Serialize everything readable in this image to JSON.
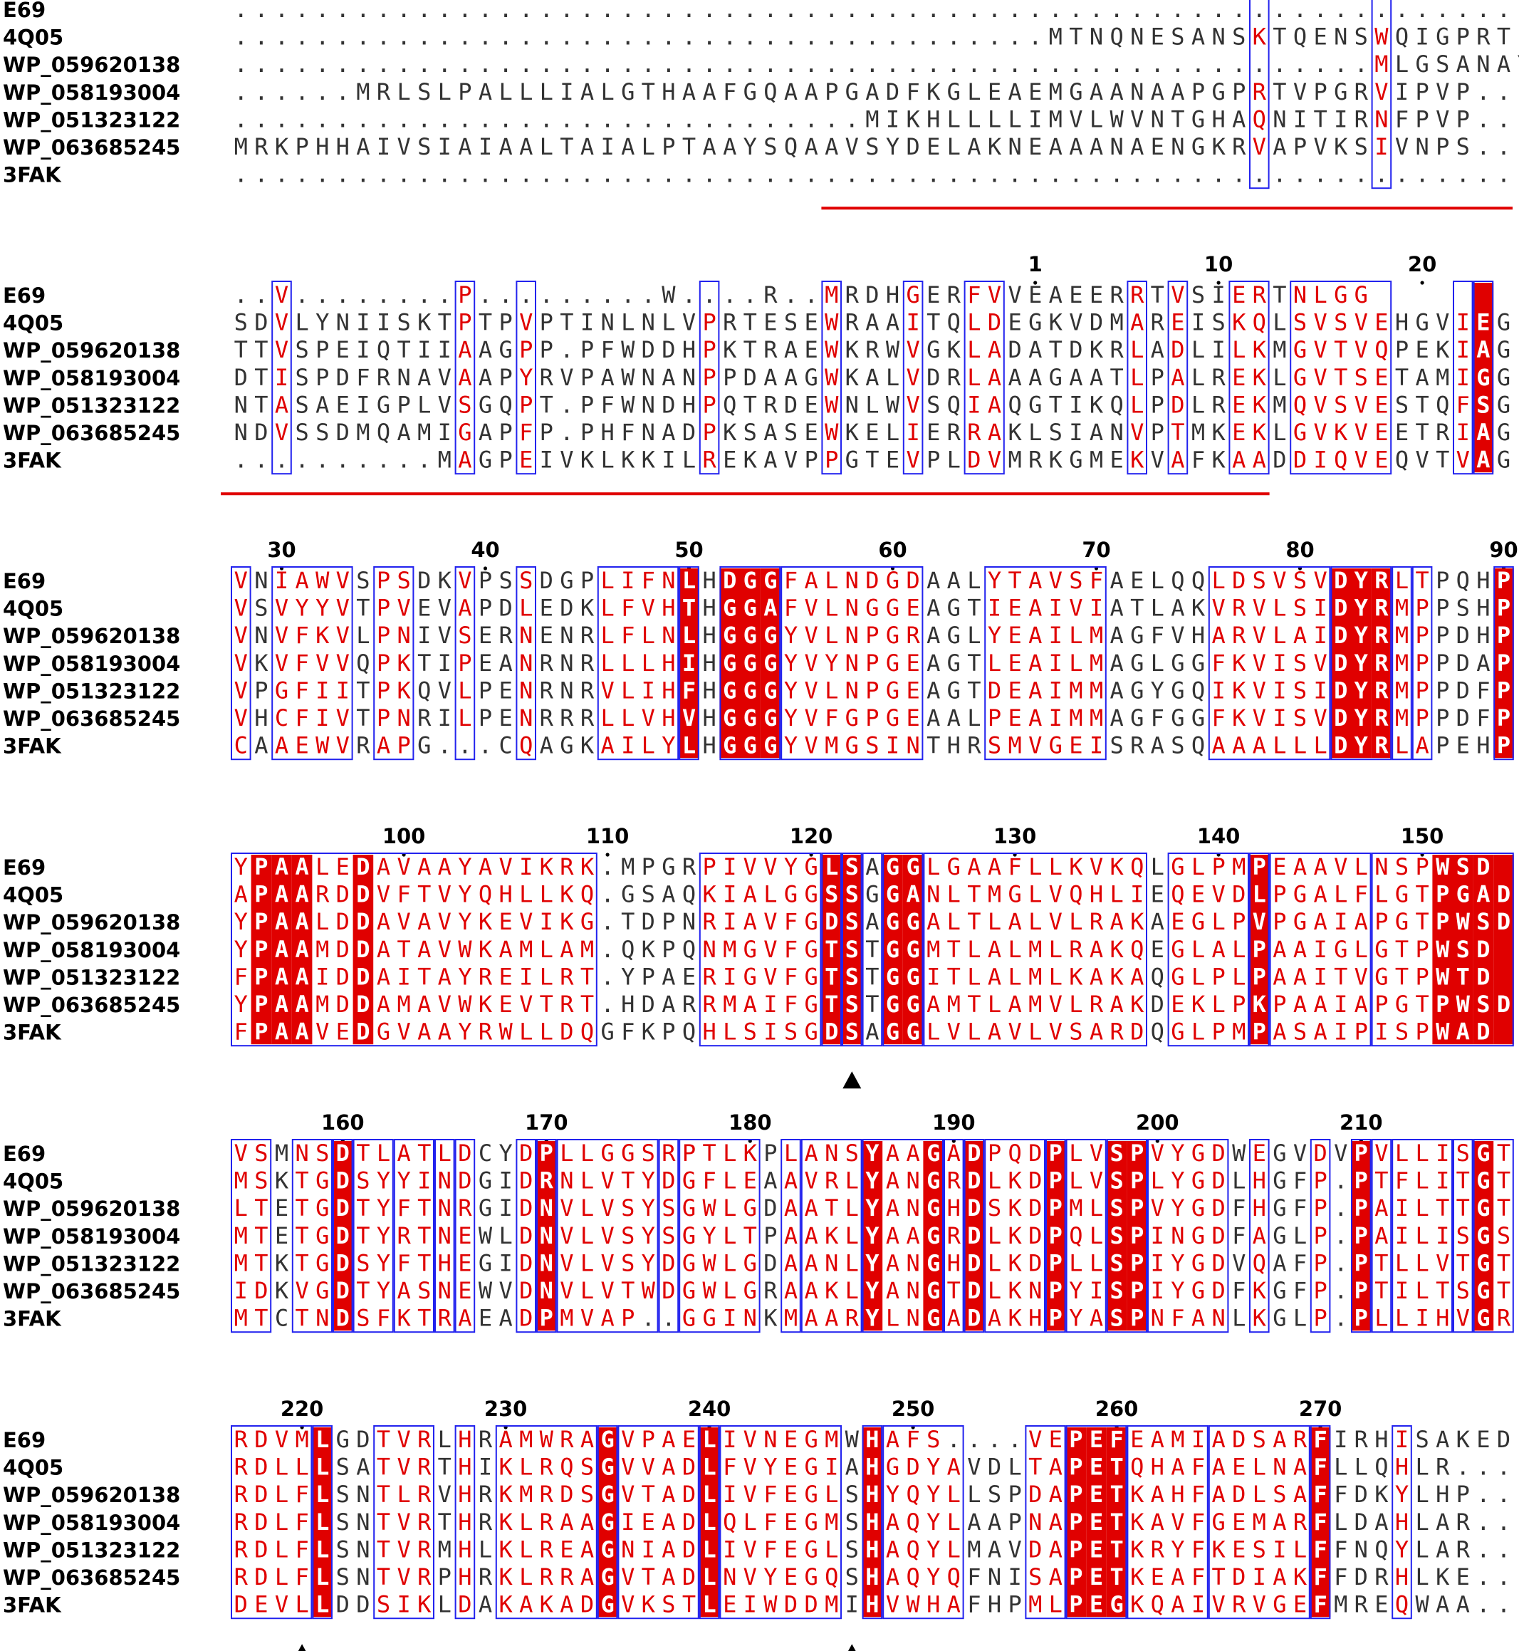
{
  "names": [
    "E69",
    "4Q05",
    "WP_059620138",
    "WP_058193004",
    "WP_051323122",
    "WP_063685245",
    "3FAK"
  ],
  "colors": {
    "conserved_fill": "#e00000",
    "similar_text": "#e00000",
    "box_line": "#2222ee",
    "neutral_text": "#333333",
    "underline": "#e00000"
  },
  "blocks": [
    {
      "seqs": [
        "...............................................................",
        "........................................MTNQNESANSKTQENSWQIGPRTLPAPSGA",
        "........................................................MLGSANAYESGLNRANRVIPVP...",
        "......MRLSLPALLLIALGTHAAFGQAAPGADFKGLEAEMGAANAAPGPRTVPGRVIPVP...",
        "...............................MIKHLLLLIMVLWVNTGHAQNITIRNFPVP...",
        "MRKPHHAIVSIAIAALTAIALPTAAYSQAAVSYDELAKNEAAANAENGKRVAPVKSIVNPS..",
        "..............................................................."
      ],
      "numbers": [],
      "boxes": [
        {
          "s": 50,
          "e": 50
        },
        {
          "s": 56,
          "e": 56
        }
      ],
      "solid": [],
      "red": [
        50,
        56
      ],
      "markers": [],
      "underline": {
        "s": 29,
        "e": 65
      }
    },
    {
      "seqs": [
        "..V........P.........W....R..MRDHGERFVVEAEERRTVSIERTNLGG",
        "SDVLYNIISKTPTPVPTINLNLVPRTESEWRAAITQLDEGKVDMAREISKQLSVSVEHGVIEG",
        "TTVSPEIQTIIAAGPP.PFWDDHPKTRAEWKRWVGKLADATDKRLADLILKMGVTVQPEKIAG",
        "DTISPDFRNAVAAPYRVPAWNANPPDAAGWKALVDRLAAAGAATLPALREKLGVTSETAMIGG",
        "NTASAEIGPLVSGQPT.PFWNDHPQTRDEWNLWVSQIAQGTIKQLPDLREKMQVSVESTQFSG",
        "NDVSSDMQAMIGAPFP.PHFNADPKSASEWKELIERRAKLSIANVPTMKEKLGVKVEETRIAG",
        "..........MAGPEIVKLKKILREKAVPPGTEVPLDVMRKGMEKVAFKAADDIQVEQVTVAG"
      ],
      "numbers": [
        {
          "i": 39,
          "n": "1"
        },
        {
          "i": 48,
          "n": "10"
        },
        {
          "i": 58,
          "n": "20"
        }
      ],
      "boxes": [
        {
          "s": 2,
          "e": 2
        },
        {
          "s": 11,
          "e": 11
        },
        {
          "s": 14,
          "e": 14
        },
        {
          "s": 23,
          "e": 23
        },
        {
          "s": 29,
          "e": 29
        },
        {
          "s": 33,
          "e": 33
        },
        {
          "s": 36,
          "e": 37
        },
        {
          "s": 44,
          "e": 44
        },
        {
          "s": 46,
          "e": 46
        },
        {
          "s": 49,
          "e": 50
        },
        {
          "s": 52,
          "e": 56
        },
        {
          "s": 60,
          "e": 60
        },
        {
          "s": 61,
          "e": 61
        }
      ],
      "solid": [
        61
      ],
      "red": [
        2,
        11,
        14,
        23,
        29,
        33,
        36,
        37,
        44,
        46,
        49,
        50,
        52,
        53,
        54,
        55,
        56,
        60,
        61
      ],
      "markers": [],
      "underline": {
        "s": 0,
        "e": 51
      }
    },
    {
      "seqs": [
        "VNIAWVSPSDKVPSSDGPLIFNLHDGGFALNDGDAALYTAVSFAELQQLDSVSVDYRLTPQHP",
        "VSVYYVTPVEVAPDLEDKLFVHTHGGAFVLNGGEAGTIEAIVIATLAKVRVLSIDYRMPPSHP",
        "VNVFKVLPNIVSERNENRLFLNLHGGGYVLNPGRAGLYEAILMAGFVHARVLAIDYRMPPDHP",
        "VKVFVVQPKTIPEANRNRLLLHIHGGGYVYNPGEAGTLEAILMAGLGGFKVISVDYRMPPDAP",
        "VPGFIITPKQVLPENRNRVLIHFHGGGYVLNPGEAGTDEAIMMAGYGQIKVISIDYRMPPDFP",
        "VHCFIVTPNRILPENRRRLLVHVHGGGYVFGPGEAALPEAIMMAGFGGFKVISVDYRMPPDFP",
        "CAAEWVRAPG...CQAGKAILYLHGGGYVMGSINTHRSMVGEISRASQAAALLLDYRLAPEHP"
      ],
      "numbers": [
        {
          "i": 2,
          "n": "30"
        },
        {
          "i": 12,
          "n": "40"
        },
        {
          "i": 22,
          "n": "50"
        },
        {
          "i": 32,
          "n": "60"
        },
        {
          "i": 42,
          "n": "70"
        },
        {
          "i": 52,
          "n": "80"
        },
        {
          "i": 62,
          "n": "90"
        }
      ],
      "boxes": [
        {
          "s": 0,
          "e": 0
        },
        {
          "s": 2,
          "e": 5
        },
        {
          "s": 7,
          "e": 8
        },
        {
          "s": 11,
          "e": 11
        },
        {
          "s": 14,
          "e": 14
        },
        {
          "s": 18,
          "e": 21
        },
        {
          "s": 22,
          "e": 22
        },
        {
          "s": 24,
          "e": 26
        },
        {
          "s": 27,
          "e": 33
        },
        {
          "s": 37,
          "e": 42
        },
        {
          "s": 48,
          "e": 53
        },
        {
          "s": 54,
          "e": 56
        },
        {
          "s": 57,
          "e": 57
        },
        {
          "s": 58,
          "e": 58
        },
        {
          "s": 62,
          "e": 62
        }
      ],
      "solid": [
        22,
        24,
        25,
        26,
        54,
        55,
        56,
        62
      ],
      "red": [
        0,
        2,
        3,
        4,
        5,
        7,
        8,
        11,
        14,
        18,
        19,
        20,
        21,
        22,
        24,
        25,
        26,
        27,
        28,
        29,
        30,
        31,
        32,
        33,
        37,
        38,
        39,
        40,
        41,
        42,
        48,
        49,
        50,
        51,
        52,
        53,
        54,
        55,
        56,
        57,
        58,
        62
      ],
      "markers": [],
      "underline": null
    },
    {
      "seqs": [
        "YPAALEDAVAAYAVIKRK.MPGRPIVVYGLSAGGLGAAFLLKVKQLGLPMPEAAVLNSPWSD",
        "APAARDDVFTVYQHLLKQ.GSAQKIALGGSSGGANLTMGLVQHLIEQEVDLPGALFLGTPGAD",
        "YPAALDDAVAVYKEVIKG.TDPNRIAVFGDSAGGALTLALVLRAKAEGLPVPGAIAPGTPWSD",
        "YPAAMDDATAVWKAMLAM.QKPQNMGVFGTSTGGMTLALMLRAKQEGLALPAAIGLGTPWSD",
        "FPAAIDDAITAYREILRT.YPAERIGVFGTSTGGITLALMLKAKAQGLPLPAAITVGTPWTD",
        "YPAAMDDAMAVWKEVTRT.HDARRMAIFGTSTGGAMTLAMVLRAKDEKLPKPAAIAPGTPWSD",
        "FPAAVEDGVAAYRWLLDQGFKPQHLSISGDSAGGLVLAVLVSARDQGLPMPASAIPISPWAD"
      ],
      "numbers": [
        {
          "i": 8,
          "n": "100"
        },
        {
          "i": 18,
          "n": "110"
        },
        {
          "i": 28,
          "n": "120"
        },
        {
          "i": 38,
          "n": "130"
        },
        {
          "i": 48,
          "n": "140"
        },
        {
          "i": 58,
          "n": "150"
        }
      ],
      "boxes": [
        {
          "s": 0,
          "e": 17
        },
        {
          "s": 23,
          "e": 28
        },
        {
          "s": 29,
          "e": 29
        },
        {
          "s": 30,
          "e": 30
        },
        {
          "s": 31,
          "e": 31
        },
        {
          "s": 32,
          "e": 33
        },
        {
          "s": 34,
          "e": 44
        },
        {
          "s": 46,
          "e": 49
        },
        {
          "s": 50,
          "e": 50
        },
        {
          "s": 51,
          "e": 55
        },
        {
          "s": 56,
          "e": 62
        }
      ],
      "solid": [
        1,
        2,
        3,
        6,
        29,
        30,
        32,
        33,
        50,
        59,
        60,
        61,
        62
      ],
      "red": [
        0,
        1,
        2,
        3,
        4,
        5,
        6,
        7,
        8,
        9,
        10,
        11,
        12,
        13,
        14,
        15,
        16,
        17,
        23,
        24,
        25,
        26,
        27,
        28,
        29,
        30,
        32,
        33,
        34,
        35,
        36,
        37,
        38,
        39,
        40,
        41,
        42,
        43,
        44,
        46,
        47,
        48,
        49,
        50,
        51,
        52,
        53,
        54,
        55,
        56,
        57,
        58,
        59,
        60,
        61,
        62
      ],
      "markers": [
        30
      ],
      "underline": null
    },
    {
      "seqs": [
        "VSMNSDTLATLDCYDPLLGGSRPTLKPLANSYAAGADPQDPLVSPVYGDWEGVDVPVLLISGT",
        "MSKTGDSYYINDGIDRNLVTYDGFLEAAVRLYANGRDLKDPLVSPLYGDLHGFP.PTFLITGT",
        "LTETGDTYFTNRGIDNVLVSYSGWLGDAATLYANGHDSKDPMLSPVYGDFHGFP.PAILTTGT",
        "MTETGDTYRTNEWLDNVLVSYSGYLTPAAKLYAAGRDLKDPQLSPINGDFAGLP.PAILISGS",
        "MTKTGDSYFTHEGIDNVLVSYDGWLGDAANLYANGHDLKDPLLSPIYGDVQAFP.PTLLVTGT",
        "IDKVGDTYASNEWVDNVLVTWDGWLGRAAKLYANGTDLKNPYISPIYGDFKGFP.PTILTSGT",
        "MTCTNDSFKTRAEADPMVAP..GGINKMAARYLNGADAKHPYASPNFANLKGLP.PLLIHVGR"
      ],
      "numbers": [
        {
          "i": 5,
          "n": "160"
        },
        {
          "i": 15,
          "n": "170"
        },
        {
          "i": 25,
          "n": "180"
        },
        {
          "i": 35,
          "n": "190"
        },
        {
          "i": 45,
          "n": "200"
        },
        {
          "i": 55,
          "n": "210"
        }
      ],
      "boxes": [
        {
          "s": 0,
          "e": 1
        },
        {
          "s": 3,
          "e": 4
        },
        {
          "s": 5,
          "e": 5
        },
        {
          "s": 6,
          "e": 7
        },
        {
          "s": 8,
          "e": 9
        },
        {
          "s": 10,
          "e": 10
        },
        {
          "s": 11,
          "e": 11
        },
        {
          "s": 14,
          "e": 14
        },
        {
          "s": 15,
          "e": 15
        },
        {
          "s": 16,
          "e": 20
        },
        {
          "s": 21,
          "e": 21
        },
        {
          "s": 22,
          "e": 25
        },
        {
          "s": 27,
          "e": 27
        },
        {
          "s": 28,
          "e": 30
        },
        {
          "s": 31,
          "e": 34
        },
        {
          "s": 35,
          "e": 35
        },
        {
          "s": 36,
          "e": 36
        },
        {
          "s": 37,
          "e": 39
        },
        {
          "s": 40,
          "e": 40
        },
        {
          "s": 41,
          "e": 42
        },
        {
          "s": 43,
          "e": 44
        },
        {
          "s": 45,
          "e": 48
        },
        {
          "s": 50,
          "e": 50
        },
        {
          "s": 53,
          "e": 53
        },
        {
          "s": 55,
          "e": 55
        },
        {
          "s": 56,
          "e": 56
        },
        {
          "s": 57,
          "e": 59
        },
        {
          "s": 60,
          "e": 60
        },
        {
          "s": 61,
          "e": 62
        }
      ],
      "solid": [
        5,
        15,
        31,
        34,
        36,
        40,
        43,
        44,
        55,
        61
      ],
      "red": [
        0,
        1,
        3,
        4,
        5,
        6,
        7,
        8,
        9,
        10,
        11,
        14,
        15,
        16,
        17,
        18,
        19,
        20,
        21,
        22,
        23,
        24,
        25,
        27,
        28,
        29,
        30,
        31,
        32,
        33,
        34,
        35,
        36,
        37,
        38,
        39,
        40,
        41,
        42,
        43,
        44,
        45,
        46,
        47,
        48,
        50,
        53,
        55,
        56,
        57,
        58,
        59,
        60,
        61,
        62
      ],
      "markers": [],
      "underline": null
    },
    {
      "seqs": [
        "RDVMLGDTVRLHRAMWRAGVPAELIVNEGMWHAFS....VEPEFEAMIADSARFIRHISAKED",
        "RDLLLSATVRTHIKLRQSGVVADLFVYEGIAHGDYAVDLTAPETQHAFAELNAFLLQHLR...",
        "RDLFLSNTLRVHRKMRDSGVTADLIVFEGLSHYQYLLSPDAPETKAHFADLSAFFDKYLHP..",
        "RDLFLSNTVRTHRKLRAAGIEADLQLFEGMSHAQYLAAPNAPETKAVFGEMARFLDAHLAR..",
        "RDLFLSNTVRMHLKLREAGNIADLIVFEGLSHAQYLMAVDAPETKRYFKESILFFNQYLAR..",
        "RDLFLSNTVRPHRKLRRAGVTADLNVYEGQSHAQYQFNISAPETKEAFTDIAKFFDRHLKE..",
        "DEVLLDDSIKLDAKAKADGVKSTLEIWDDMIHVWHAFHPMLPEGKQAIVRVGEFMREQWAA.."
      ],
      "numbers": [
        {
          "i": 3,
          "n": "220"
        },
        {
          "i": 13,
          "n": "230"
        },
        {
          "i": 23,
          "n": "240"
        },
        {
          "i": 33,
          "n": "250"
        },
        {
          "i": 43,
          "n": "260"
        },
        {
          "i": 53,
          "n": "270"
        }
      ],
      "boxes": [
        {
          "s": 0,
          "e": 3
        },
        {
          "s": 4,
          "e": 4
        },
        {
          "s": 7,
          "e": 9
        },
        {
          "s": 11,
          "e": 11
        },
        {
          "s": 13,
          "e": 17
        },
        {
          "s": 18,
          "e": 18
        },
        {
          "s": 19,
          "e": 22
        },
        {
          "s": 23,
          "e": 23
        },
        {
          "s": 24,
          "e": 29
        },
        {
          "s": 31,
          "e": 31
        },
        {
          "s": 32,
          "e": 35
        },
        {
          "s": 39,
          "e": 40
        },
        {
          "s": 41,
          "e": 43
        },
        {
          "s": 44,
          "e": 47
        },
        {
          "s": 48,
          "e": 52
        },
        {
          "s": 53,
          "e": 53
        },
        {
          "s": 57,
          "e": 57
        }
      ],
      "solid": [
        4,
        18,
        23,
        31,
        41,
        42,
        43,
        53
      ],
      "red": [
        0,
        1,
        2,
        3,
        4,
        7,
        8,
        9,
        11,
        13,
        14,
        15,
        16,
        17,
        18,
        19,
        20,
        21,
        22,
        23,
        24,
        25,
        26,
        27,
        28,
        29,
        31,
        32,
        33,
        34,
        35,
        39,
        40,
        41,
        42,
        43,
        44,
        45,
        46,
        47,
        48,
        49,
        50,
        51,
        52,
        53,
        57
      ],
      "markers": [
        3,
        30
      ],
      "underline": null
    }
  ]
}
